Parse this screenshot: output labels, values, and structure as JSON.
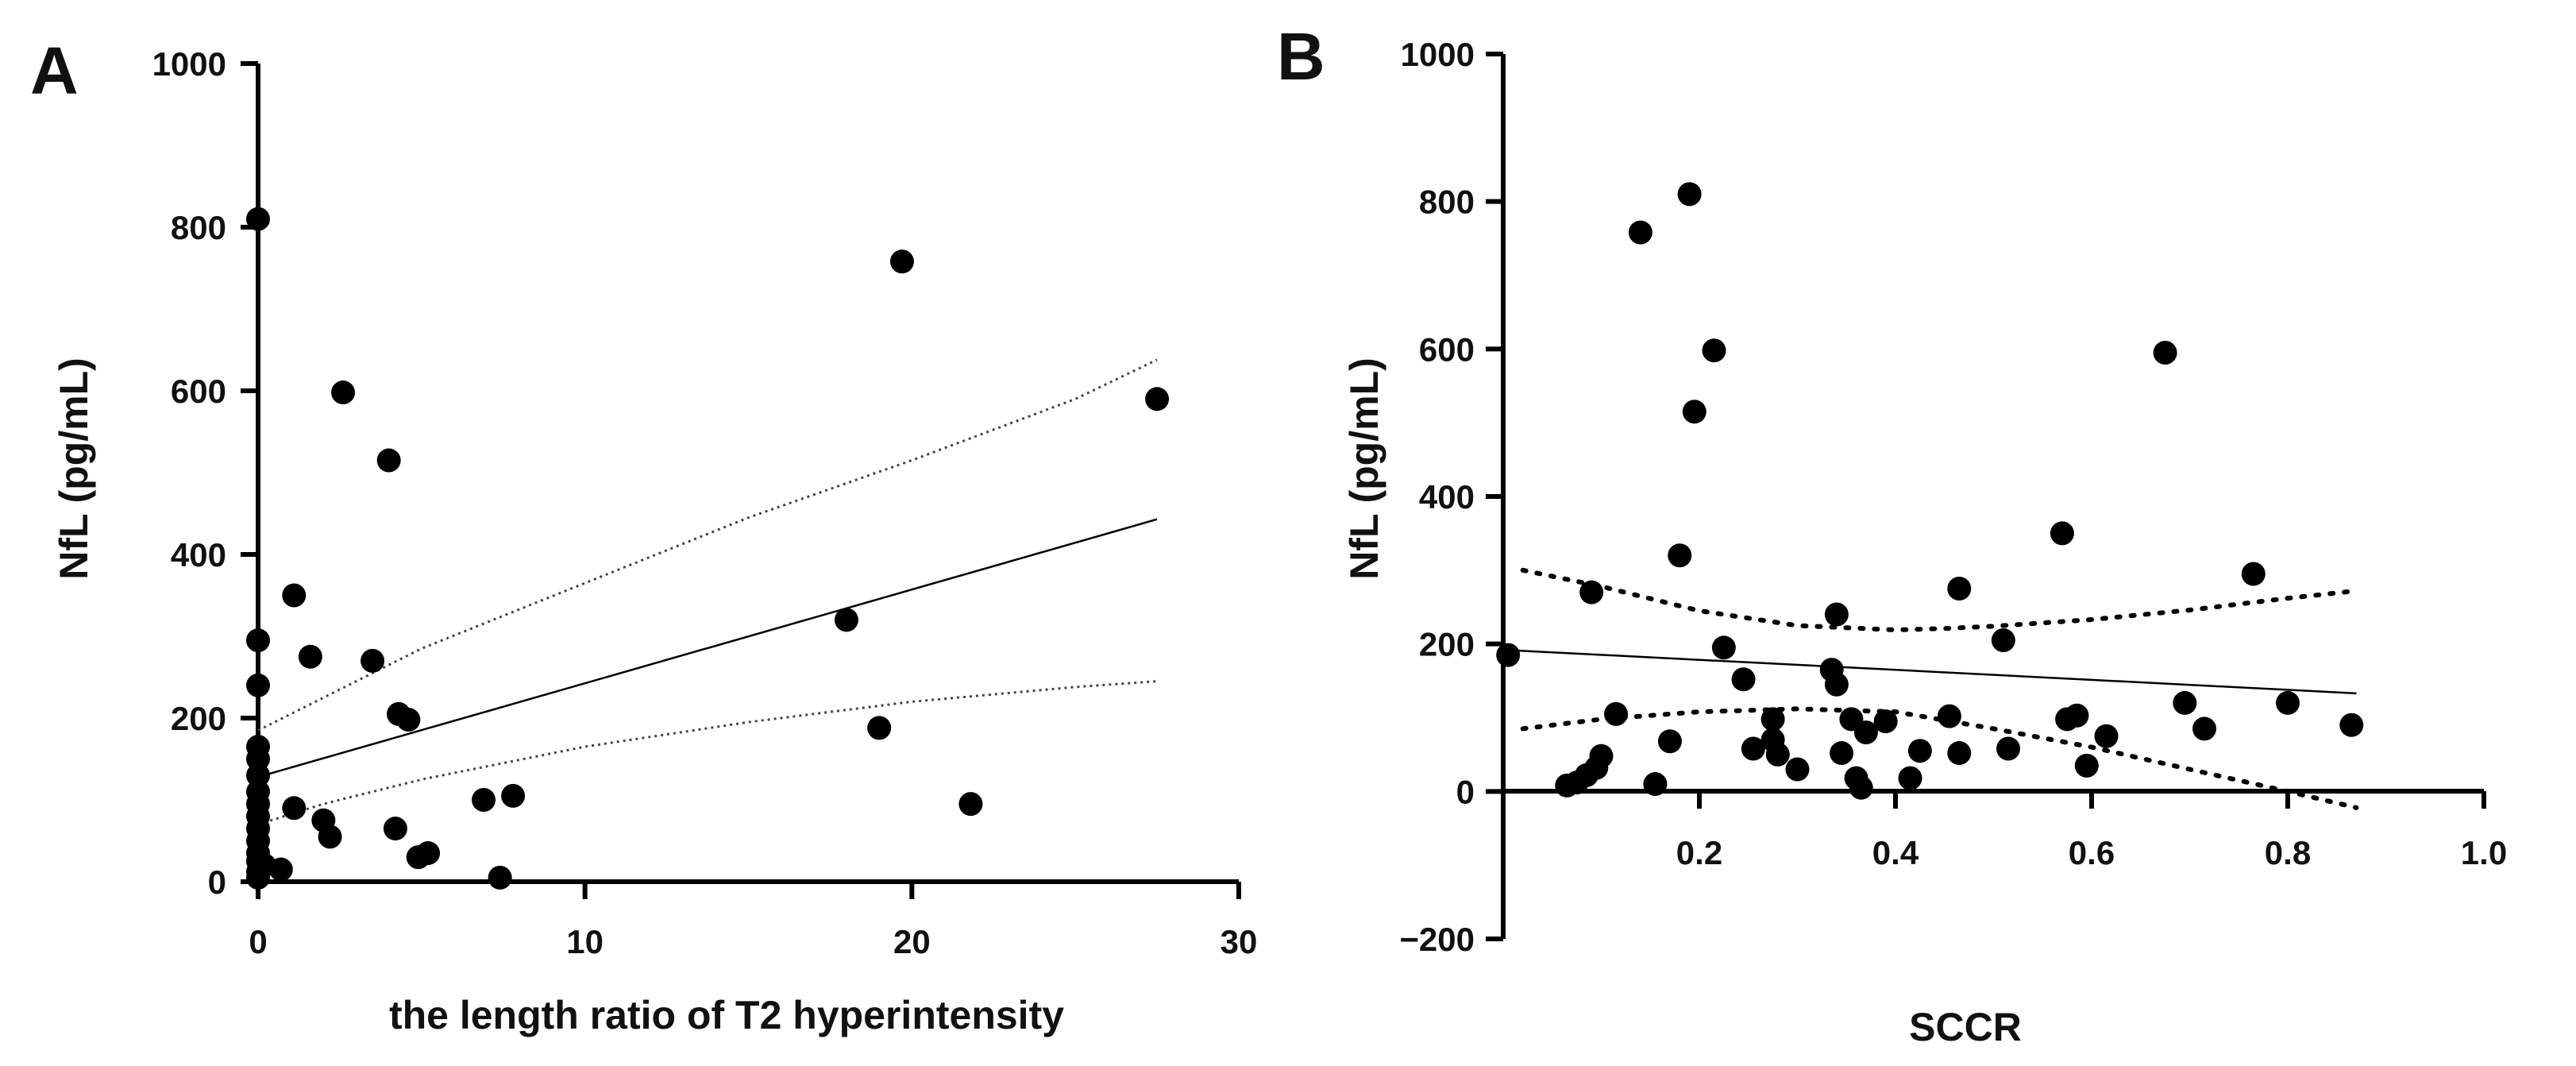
{
  "chart_data": [
    {
      "panel": "A",
      "type": "scatter",
      "title": "",
      "xlabel": "the length ratio of T2 hyperintensity",
      "ylabel": "NfL (pg/mL)",
      "xlim": [
        0,
        30
      ],
      "ylim": [
        0,
        1000
      ],
      "xticks": [
        0,
        10,
        20,
        30
      ],
      "yticks": [
        0,
        200,
        400,
        600,
        800,
        1000
      ],
      "points": [
        {
          "x": 0,
          "y": 810
        },
        {
          "x": 0,
          "y": 295
        },
        {
          "x": 0,
          "y": 240
        },
        {
          "x": 0,
          "y": 165
        },
        {
          "x": 0,
          "y": 150
        },
        {
          "x": 0,
          "y": 130
        },
        {
          "x": 0,
          "y": 110
        },
        {
          "x": 0,
          "y": 95
        },
        {
          "x": 0,
          "y": 80
        },
        {
          "x": 0,
          "y": 65
        },
        {
          "x": 0,
          "y": 50
        },
        {
          "x": 0,
          "y": 35
        },
        {
          "x": 0,
          "y": 25
        },
        {
          "x": 0,
          "y": 12
        },
        {
          "x": 0,
          "y": 5
        },
        {
          "x": 0.2,
          "y": 20
        },
        {
          "x": 0.7,
          "y": 15
        },
        {
          "x": 1.1,
          "y": 350
        },
        {
          "x": 1.1,
          "y": 90
        },
        {
          "x": 1.6,
          "y": 275
        },
        {
          "x": 2.0,
          "y": 75
        },
        {
          "x": 2.2,
          "y": 55
        },
        {
          "x": 2.6,
          "y": 598
        },
        {
          "x": 3.5,
          "y": 270
        },
        {
          "x": 4.0,
          "y": 515
        },
        {
          "x": 4.2,
          "y": 65
        },
        {
          "x": 4.3,
          "y": 205
        },
        {
          "x": 4.6,
          "y": 198
        },
        {
          "x": 4.9,
          "y": 30
        },
        {
          "x": 5.2,
          "y": 35
        },
        {
          "x": 6.9,
          "y": 100
        },
        {
          "x": 7.4,
          "y": 5
        },
        {
          "x": 7.8,
          "y": 105
        },
        {
          "x": 18.0,
          "y": 320
        },
        {
          "x": 19.0,
          "y": 188
        },
        {
          "x": 19.7,
          "y": 758
        },
        {
          "x": 21.8,
          "y": 95
        },
        {
          "x": 27.5,
          "y": 590
        }
      ],
      "fit_line": {
        "x": [
          0,
          27.5
        ],
        "y": [
          128,
          443
        ]
      },
      "ci_upper": {
        "x": [
          0,
          2,
          5,
          10,
          15,
          20,
          25,
          27.5
        ],
        "y": [
          185,
          225,
          285,
          365,
          445,
          515,
          590,
          638
        ]
      },
      "ci_lower": {
        "x": [
          0,
          2,
          5,
          10,
          15,
          20,
          25,
          27.5
        ],
        "y": [
          70,
          95,
          125,
          165,
          195,
          220,
          238,
          245
        ]
      }
    },
    {
      "panel": "B",
      "type": "scatter",
      "title": "",
      "xlabel": "SCCR",
      "ylabel": "NfL (pg/mL)",
      "xlim": [
        0,
        1.0
      ],
      "ylim": [
        -200,
        1000
      ],
      "xticks": [
        0.2,
        0.4,
        0.6,
        0.8,
        1.0
      ],
      "xtick_labels": [
        "0.2",
        "0.4",
        "0.6",
        "0.8",
        "1.0"
      ],
      "yticks": [
        -200,
        0,
        200,
        400,
        600,
        800,
        1000
      ],
      "ytick_labels": [
        "−200",
        "0",
        "200",
        "400",
        "600",
        "800",
        "1000"
      ],
      "points": [
        {
          "x": 0.005,
          "y": 185
        },
        {
          "x": 0.065,
          "y": 8
        },
        {
          "x": 0.075,
          "y": 12
        },
        {
          "x": 0.085,
          "y": 22
        },
        {
          "x": 0.09,
          "y": 270
        },
        {
          "x": 0.095,
          "y": 32
        },
        {
          "x": 0.1,
          "y": 48
        },
        {
          "x": 0.115,
          "y": 105
        },
        {
          "x": 0.14,
          "y": 758
        },
        {
          "x": 0.155,
          "y": 10
        },
        {
          "x": 0.17,
          "y": 68
        },
        {
          "x": 0.18,
          "y": 320
        },
        {
          "x": 0.19,
          "y": 810
        },
        {
          "x": 0.195,
          "y": 515
        },
        {
          "x": 0.215,
          "y": 598
        },
        {
          "x": 0.225,
          "y": 195
        },
        {
          "x": 0.245,
          "y": 152
        },
        {
          "x": 0.255,
          "y": 58
        },
        {
          "x": 0.275,
          "y": 98
        },
        {
          "x": 0.275,
          "y": 70
        },
        {
          "x": 0.28,
          "y": 50
        },
        {
          "x": 0.3,
          "y": 30
        },
        {
          "x": 0.335,
          "y": 165
        },
        {
          "x": 0.34,
          "y": 240
        },
        {
          "x": 0.34,
          "y": 145
        },
        {
          "x": 0.345,
          "y": 52
        },
        {
          "x": 0.355,
          "y": 98
        },
        {
          "x": 0.36,
          "y": 18
        },
        {
          "x": 0.365,
          "y": 5
        },
        {
          "x": 0.37,
          "y": 80
        },
        {
          "x": 0.39,
          "y": 95
        },
        {
          "x": 0.415,
          "y": 18
        },
        {
          "x": 0.425,
          "y": 55
        },
        {
          "x": 0.455,
          "y": 102
        },
        {
          "x": 0.465,
          "y": 275
        },
        {
          "x": 0.465,
          "y": 52
        },
        {
          "x": 0.51,
          "y": 205
        },
        {
          "x": 0.515,
          "y": 58
        },
        {
          "x": 0.57,
          "y": 350
        },
        {
          "x": 0.575,
          "y": 98
        },
        {
          "x": 0.585,
          "y": 103
        },
        {
          "x": 0.595,
          "y": 35
        },
        {
          "x": 0.615,
          "y": 75
        },
        {
          "x": 0.675,
          "y": 595
        },
        {
          "x": 0.695,
          "y": 120
        },
        {
          "x": 0.715,
          "y": 85
        },
        {
          "x": 0.765,
          "y": 295
        },
        {
          "x": 0.8,
          "y": 120
        },
        {
          "x": 0.865,
          "y": 90
        }
      ],
      "fit_line": {
        "x": [
          0,
          0.87
        ],
        "y": [
          192,
          133
        ]
      },
      "ci_upper": {
        "x": [
          0.02,
          0.1,
          0.2,
          0.3,
          0.4,
          0.45,
          0.5,
          0.6,
          0.7,
          0.8,
          0.87
        ],
        "y": [
          300,
          278,
          245,
          225,
          219,
          221,
          224,
          233,
          246,
          262,
          272
        ]
      },
      "ci_lower": {
        "x": [
          0.02,
          0.1,
          0.2,
          0.3,
          0.4,
          0.5,
          0.6,
          0.7,
          0.8,
          0.87
        ],
        "y": [
          85,
          98,
          108,
          112,
          108,
          85,
          60,
          30,
          0,
          -22
        ]
      }
    }
  ]
}
